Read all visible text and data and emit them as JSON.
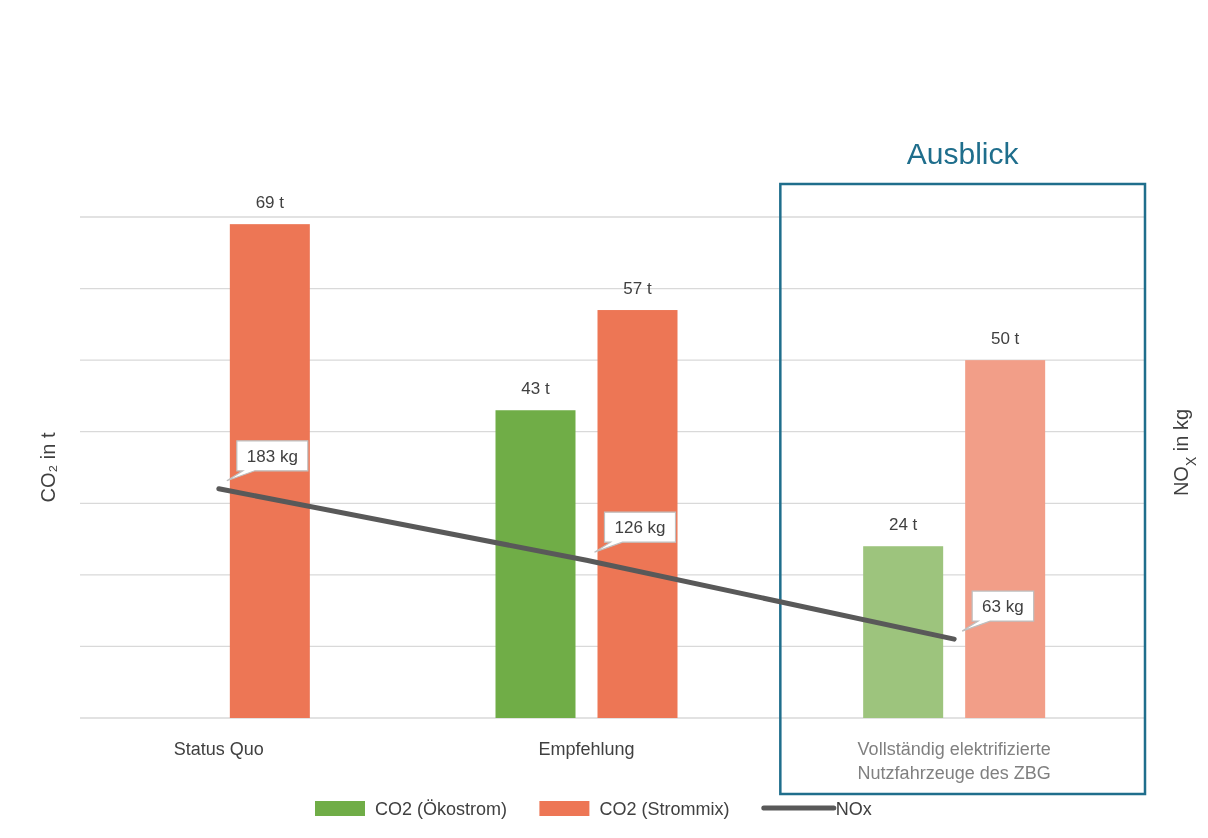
{
  "chart_data": {
    "type": "bar",
    "categories": [
      "Status Quo",
      "Empfehlung",
      "Vollständig elektrifizierte Nutzfahrzeuge des ZBG"
    ],
    "ylabel": "CO₂ in t",
    "y2label": "NO$_{X}$ in kg",
    "ylim": [
      0,
      70
    ],
    "yticks": [
      {
        "value": 0,
        "label": null
      },
      {
        "value": 10,
        "label": null
      },
      {
        "value": 20,
        "label": null
      },
      {
        "value": 30,
        "label": null
      },
      {
        "value": 40,
        "label": null
      },
      {
        "value": 50,
        "label": null
      },
      {
        "value": 60,
        "label": null
      },
      {
        "value": 70,
        "label": null
      }
    ],
    "y2lim": [
      0,
      400
    ],
    "grid": "y",
    "legend": "bottom",
    "annotations": [
      "Ausblick"
    ],
    "series": [
      {
        "name": "CO2 (Ökostrom)",
        "color": "#70ad47",
        "colors": [
          "#70ad47",
          "#70ad47",
          "#9dc47d"
        ],
        "values": [
          null,
          43,
          24
        ],
        "value_labels": [
          null,
          "43 t",
          "24 t"
        ]
      },
      {
        "name": "CO2 (Strommix)",
        "color": "#ed7655",
        "colors": [
          "#ed7655",
          "#ed7655",
          "#f29e88"
        ],
        "values": [
          69,
          57,
          50
        ],
        "value_labels": [
          "69 t",
          "57 t",
          "50 t"
        ]
      },
      {
        "name": "NOx",
        "type": "line",
        "axis": "y2",
        "color": "#595959",
        "values": [
          183,
          126,
          63
        ],
        "value_labels": [
          "183 kg",
          "126 kg",
          "63 kg"
        ]
      }
    ]
  }
}
